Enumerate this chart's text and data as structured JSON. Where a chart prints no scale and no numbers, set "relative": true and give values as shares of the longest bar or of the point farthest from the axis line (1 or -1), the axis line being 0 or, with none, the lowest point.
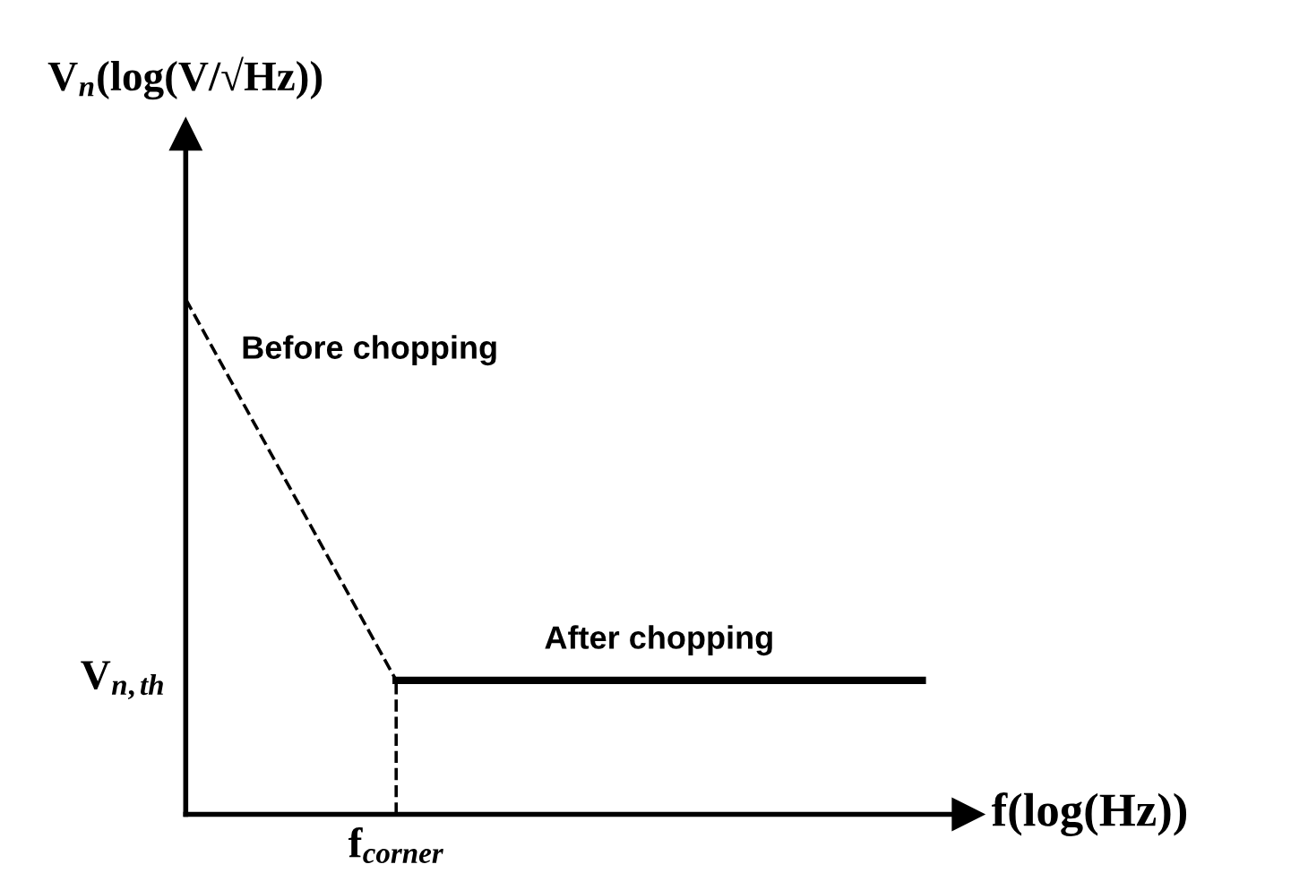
{
  "chart_data": {
    "type": "line",
    "relative": true,
    "xlabel": "f(log(Hz))",
    "ylabel": "V$_{n}$(log(V/√Hz))",
    "categories": [
      null,
      null,
      null,
      null,
      null,
      null,
      null,
      null
    ],
    "series": [
      {
        "name": "Before chopping",
        "color": "#000000",
        "line_style": "dashed",
        "values": [
          1,
          0.63,
          0.26,
          null,
          null,
          null,
          null,
          null
        ]
      },
      {
        "name": "After chopping",
        "color": "#000000",
        "line_style": "solid",
        "values": [
          null,
          null,
          0.26,
          0.26,
          0.26,
          0.26,
          0.26,
          0.26
        ]
      }
    ],
    "annotations": [
      "V$_{n,th}$",
      "f$_{corner}$"
    ]
  }
}
